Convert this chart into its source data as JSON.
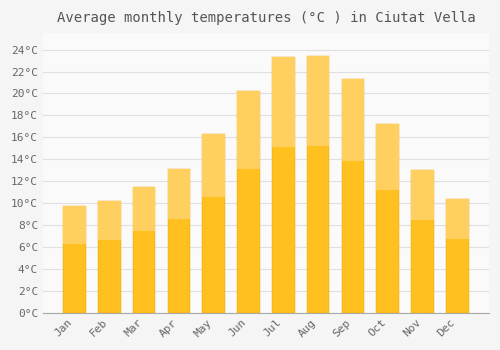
{
  "title": "Average monthly temperatures (°C ) in Ciutat Vella",
  "months": [
    "Jan",
    "Feb",
    "Mar",
    "Apr",
    "May",
    "Jun",
    "Jul",
    "Aug",
    "Sep",
    "Oct",
    "Nov",
    "Dec"
  ],
  "values": [
    9.7,
    10.2,
    11.5,
    13.1,
    16.3,
    20.2,
    23.3,
    23.4,
    21.3,
    17.2,
    13.0,
    10.4
  ],
  "bar_color_top": "#FFB700",
  "bar_color_bottom": "#FFA500",
  "bar_color": "#FFC020",
  "background_color": "#F5F5F5",
  "plot_background_color": "#FAFAFA",
  "grid_color": "#E0E0E0",
  "text_color": "#666666",
  "title_color": "#555555",
  "yticks": [
    0,
    2,
    4,
    6,
    8,
    10,
    12,
    14,
    16,
    18,
    20,
    22,
    24
  ],
  "ylim": [
    0,
    25.5
  ],
  "title_fontsize": 10,
  "tick_fontsize": 8,
  "font_family": "monospace",
  "bar_width": 0.65
}
